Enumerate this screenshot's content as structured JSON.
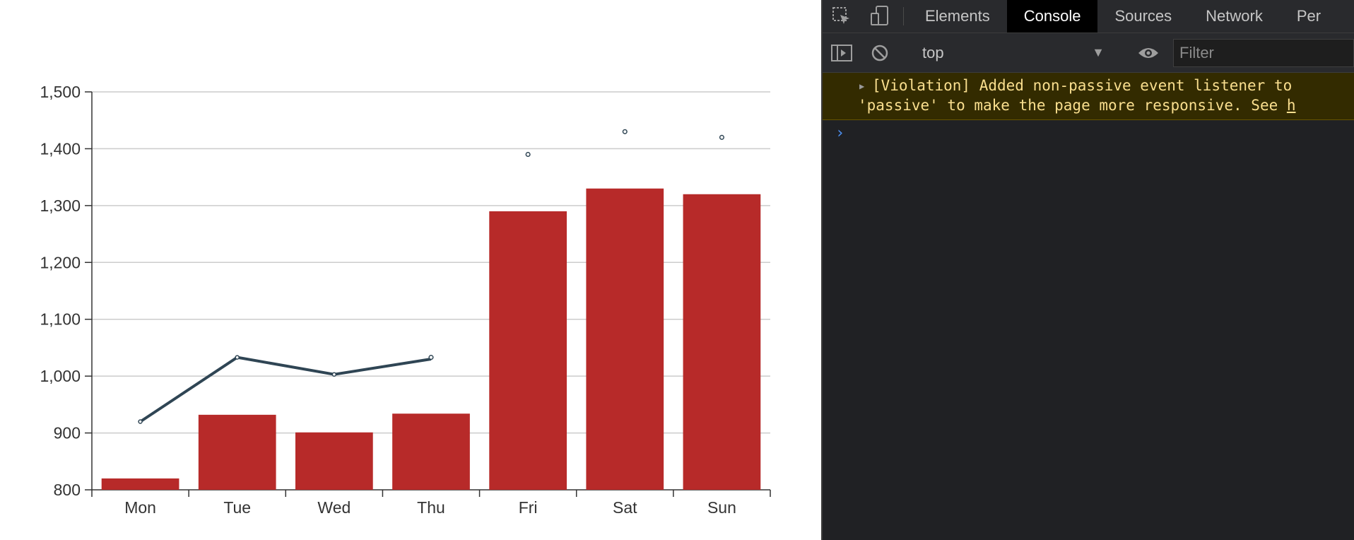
{
  "chart_data": {
    "type": "bar",
    "categories": [
      "Mon",
      "Tue",
      "Wed",
      "Thu",
      "Fri",
      "Sat",
      "Sun"
    ],
    "series": [
      {
        "type": "bar",
        "values": [
          820,
          932,
          901,
          934,
          1290,
          1330,
          1320
        ],
        "color": "#b72a29"
      },
      {
        "type": "line",
        "values": [
          920,
          1033,
          1003,
          1030,
          null,
          null,
          null
        ],
        "color": "#2f4554"
      },
      {
        "type": "scatter",
        "values": [
          null,
          null,
          null,
          1033,
          1390,
          1430,
          1420
        ],
        "color": "#2f4554"
      }
    ],
    "ylim": [
      800,
      1500
    ],
    "yticks": [
      800,
      900,
      1000,
      1100,
      1200,
      1300,
      1400,
      1500
    ],
    "ytick_labels": [
      "800",
      "900",
      "1,000",
      "1,100",
      "1,200",
      "1,300",
      "1,400",
      "1,500"
    ],
    "grid": true,
    "title": "",
    "xlabel": "",
    "ylabel": ""
  },
  "devtools": {
    "tabs": [
      "Elements",
      "Console",
      "Sources",
      "Network",
      "Per"
    ],
    "active_tab": "Console",
    "toolbar": {
      "context": "top",
      "filter_placeholder": "Filter"
    },
    "violation": {
      "line1": "[Violation] Added non-passive event listener to",
      "line2_prefix": "'passive' to make the page more responsive. See ",
      "line2_link": "h"
    },
    "prompt": "›",
    "icons": [
      "inspect-element-icon",
      "device-toolbar-icon",
      "sidebar-toggle-icon",
      "clear-console-icon",
      "eye-icon",
      "dropdown-caret-icon"
    ]
  }
}
